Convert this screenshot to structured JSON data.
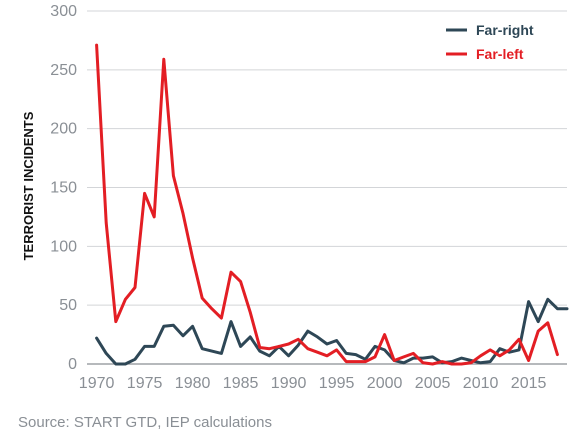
{
  "chart_data": {
    "type": "line",
    "title": "",
    "xlabel": "",
    "ylabel": "TERRORIST INCIDENTS",
    "xlim": [
      1969,
      2019
    ],
    "ylim": [
      0,
      300
    ],
    "y_ticks": [
      0,
      50,
      100,
      150,
      200,
      250,
      300
    ],
    "x_ticks": [
      1970,
      1975,
      1980,
      1985,
      1990,
      1995,
      2000,
      2005,
      2010,
      2015
    ],
    "grid": "horizontal",
    "legend_position": "top-right",
    "x": [
      1970,
      1971,
      1972,
      1973,
      1974,
      1975,
      1976,
      1977,
      1978,
      1979,
      1980,
      1981,
      1982,
      1983,
      1984,
      1985,
      1986,
      1987,
      1988,
      1989,
      1990,
      1991,
      1992,
      1993,
      1994,
      1995,
      1996,
      1997,
      1998,
      1999,
      2000,
      2001,
      2002,
      2003,
      2004,
      2005,
      2006,
      2007,
      2008,
      2009,
      2010,
      2011,
      2012,
      2013,
      2014,
      2015,
      2016,
      2017,
      2018,
      2019
    ],
    "series": [
      {
        "name": "Far-right",
        "color": "#2e4756",
        "values": [
          22,
          9,
          0,
          0,
          4,
          15,
          15,
          32,
          33,
          24,
          32,
          13,
          11,
          9,
          36,
          15,
          23,
          11,
          7,
          15,
          7,
          16,
          28,
          23,
          17,
          20,
          9,
          8,
          4,
          15,
          12,
          3,
          1,
          5,
          5,
          6,
          1,
          2,
          5,
          3,
          1,
          2,
          13,
          10,
          12,
          53,
          36,
          55,
          47,
          47
        ]
      },
      {
        "name": "Far-left",
        "color": "#e31e24",
        "values": [
          271,
          120,
          36,
          55,
          65,
          145,
          125,
          259,
          160,
          128,
          90,
          56,
          47,
          39,
          78,
          70,
          44,
          14,
          13,
          15,
          17,
          21,
          13,
          10,
          7,
          12,
          2,
          2,
          2,
          6,
          25,
          3,
          6,
          9,
          1,
          0,
          2,
          0,
          0,
          1,
          7,
          12,
          7,
          12,
          21,
          3,
          28,
          35,
          8,
          null
        ]
      }
    ]
  },
  "footer": {
    "source": "Source: START GTD, IEP calculations"
  }
}
